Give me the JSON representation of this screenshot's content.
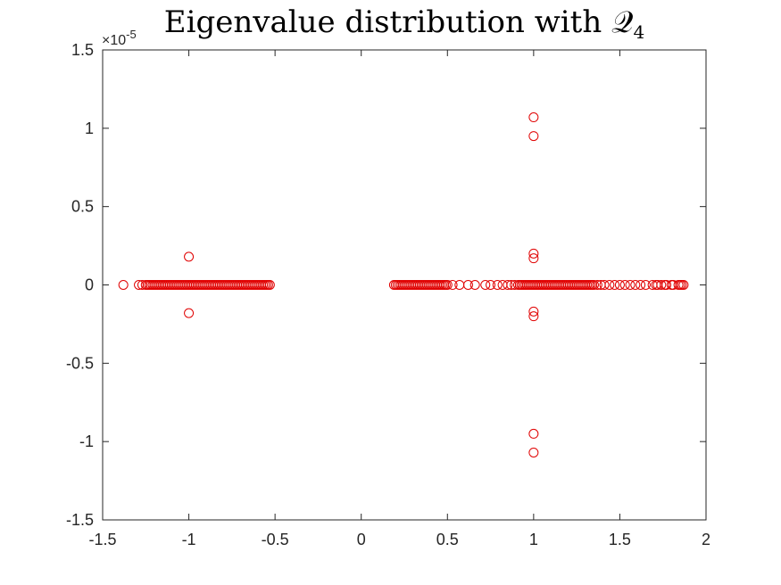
{
  "chart_data": {
    "type": "scatter",
    "title": "Eigenvalue distribution with 𝒬",
    "title_subscript": "4",
    "xlabel": "",
    "ylabel": "",
    "xlim": [
      -1.5,
      2
    ],
    "ylim": [
      -1.5,
      1.5
    ],
    "y_exponent": "×10",
    "y_exponent_power": "-5",
    "x_ticks": [
      "-1.5",
      "-1",
      "-0.5",
      "0",
      "0.5",
      "1",
      "1.5",
      "2"
    ],
    "x_tick_values": [
      -1.5,
      -1,
      -0.5,
      0,
      0.5,
      1,
      1.5,
      2
    ],
    "y_ticks": [
      "1.5",
      "1",
      "0.5",
      "0",
      "-0.5",
      "-1",
      "-1.5"
    ],
    "y_tick_values": [
      1.5,
      1,
      0.5,
      0,
      -0.5,
      -1,
      -1.5
    ],
    "grid": false,
    "legend": "none",
    "marker": "open-circle",
    "marker_color": "#e00000",
    "series": [
      {
        "points_on_real_axis": {
          "y": 0,
          "x": [
            -1.38,
            -1.29,
            -1.27,
            -1.25,
            -1.24,
            -1.23,
            -1.22,
            -1.21,
            -1.2,
            -1.19,
            -1.18,
            -1.17,
            -1.16,
            -1.15,
            -1.14,
            -1.13,
            -1.12,
            -1.11,
            -1.1,
            -1.09,
            -1.08,
            -1.07,
            -1.06,
            -1.05,
            -1.04,
            -1.03,
            -1.02,
            -1.01,
            -1.0,
            -0.99,
            -0.98,
            -0.97,
            -0.96,
            -0.95,
            -0.94,
            -0.93,
            -0.92,
            -0.91,
            -0.9,
            -0.89,
            -0.88,
            -0.87,
            -0.86,
            -0.85,
            -0.84,
            -0.83,
            -0.82,
            -0.81,
            -0.8,
            -0.79,
            -0.78,
            -0.77,
            -0.76,
            -0.75,
            -0.74,
            -0.73,
            -0.72,
            -0.71,
            -0.7,
            -0.69,
            -0.68,
            -0.67,
            -0.66,
            -0.65,
            -0.64,
            -0.63,
            -0.62,
            -0.61,
            -0.6,
            -0.59,
            -0.58,
            -0.57,
            -0.56,
            -0.55,
            -0.54,
            -0.53,
            0.19,
            0.2,
            0.21,
            0.22,
            0.23,
            0.24,
            0.25,
            0.26,
            0.27,
            0.28,
            0.29,
            0.3,
            0.31,
            0.32,
            0.33,
            0.34,
            0.35,
            0.36,
            0.37,
            0.38,
            0.39,
            0.4,
            0.41,
            0.42,
            0.43,
            0.44,
            0.45,
            0.46,
            0.47,
            0.48,
            0.49,
            0.5,
            0.53,
            0.57,
            0.62,
            0.66,
            0.72,
            0.75,
            0.79,
            0.82,
            0.85,
            0.87,
            0.89,
            0.91,
            0.92,
            0.93,
            0.94,
            0.95,
            0.96,
            0.97,
            0.98,
            0.99,
            1.0,
            1.01,
            1.02,
            1.03,
            1.04,
            1.05,
            1.06,
            1.07,
            1.08,
            1.09,
            1.1,
            1.11,
            1.12,
            1.13,
            1.14,
            1.15,
            1.16,
            1.17,
            1.18,
            1.19,
            1.2,
            1.21,
            1.22,
            1.23,
            1.24,
            1.25,
            1.26,
            1.27,
            1.28,
            1.29,
            1.3,
            1.31,
            1.32,
            1.33,
            1.34,
            1.35,
            1.37,
            1.39,
            1.41,
            1.44,
            1.47,
            1.5,
            1.53,
            1.56,
            1.59,
            1.62,
            1.65,
            1.69,
            1.71,
            1.72,
            1.74,
            1.76,
            1.77,
            1.8,
            1.81,
            1.84,
            1.85,
            1.86,
            1.87
          ]
        },
        "off_axis_points": [
          {
            "x": -1.0,
            "y": 0.18
          },
          {
            "x": -1.0,
            "y": -0.18
          },
          {
            "x": 1.0,
            "y": 1.07
          },
          {
            "x": 1.0,
            "y": 0.95
          },
          {
            "x": 1.0,
            "y": 0.2
          },
          {
            "x": 1.0,
            "y": 0.17
          },
          {
            "x": 1.0,
            "y": -0.17
          },
          {
            "x": 1.0,
            "y": -0.2
          },
          {
            "x": 1.0,
            "y": -0.95
          },
          {
            "x": 1.0,
            "y": -1.07
          }
        ]
      }
    ]
  }
}
